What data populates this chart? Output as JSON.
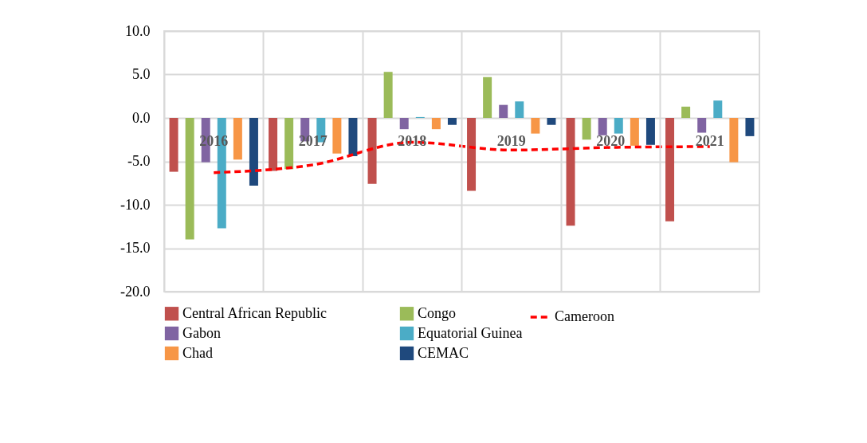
{
  "chart_data": {
    "type": "bar",
    "categories": [
      "2016",
      "2017",
      "2018",
      "2019",
      "2020",
      "2021"
    ],
    "series": [
      {
        "name": "Central African Republic",
        "color": "#c0504d",
        "values": [
          -6.2,
          -6.1,
          -7.6,
          -8.4,
          -12.4,
          -11.9
        ]
      },
      {
        "name": "Congo",
        "color": "#9bbb59",
        "values": [
          -14.0,
          -5.9,
          5.3,
          4.7,
          -2.5,
          1.3
        ]
      },
      {
        "name": "Gabon",
        "color": "#8064a2",
        "values": [
          -5.1,
          -2.7,
          -1.3,
          1.5,
          -2.0,
          -1.7
        ]
      },
      {
        "name": "Equatorial Guinea",
        "color": "#4bacc6",
        "values": [
          -12.7,
          -2.8,
          0.1,
          1.9,
          -1.8,
          2.0
        ]
      },
      {
        "name": "Chad",
        "color": "#f79646",
        "values": [
          -4.8,
          -4.1,
          -1.3,
          -1.8,
          -3.2,
          -5.1
        ]
      },
      {
        "name": "CEMAC",
        "color": "#1f497d",
        "values": [
          -7.8,
          -4.4,
          -0.8,
          -0.8,
          -3.1,
          -2.1
        ]
      },
      {
        "name": "Cameroon",
        "color": "#ff0000",
        "type": "line",
        "line_style": "dashed",
        "marker": "none",
        "values": [
          -6.3,
          -5.4,
          -2.8,
          -3.7,
          -3.4,
          -3.3
        ]
      }
    ],
    "ylim": [
      -20,
      10
    ],
    "yticks": [
      {
        "value": -20,
        "label": "-20.0"
      },
      {
        "value": -15,
        "label": "-15.0"
      },
      {
        "value": -10,
        "label": "-10.0"
      },
      {
        "value": -5,
        "label": "-5.0"
      },
      {
        "value": 0,
        "label": "0.0"
      },
      {
        "value": 5,
        "label": "5.0"
      },
      {
        "value": 10,
        "label": "10.0"
      }
    ],
    "grid": true,
    "legend": "bottom"
  }
}
